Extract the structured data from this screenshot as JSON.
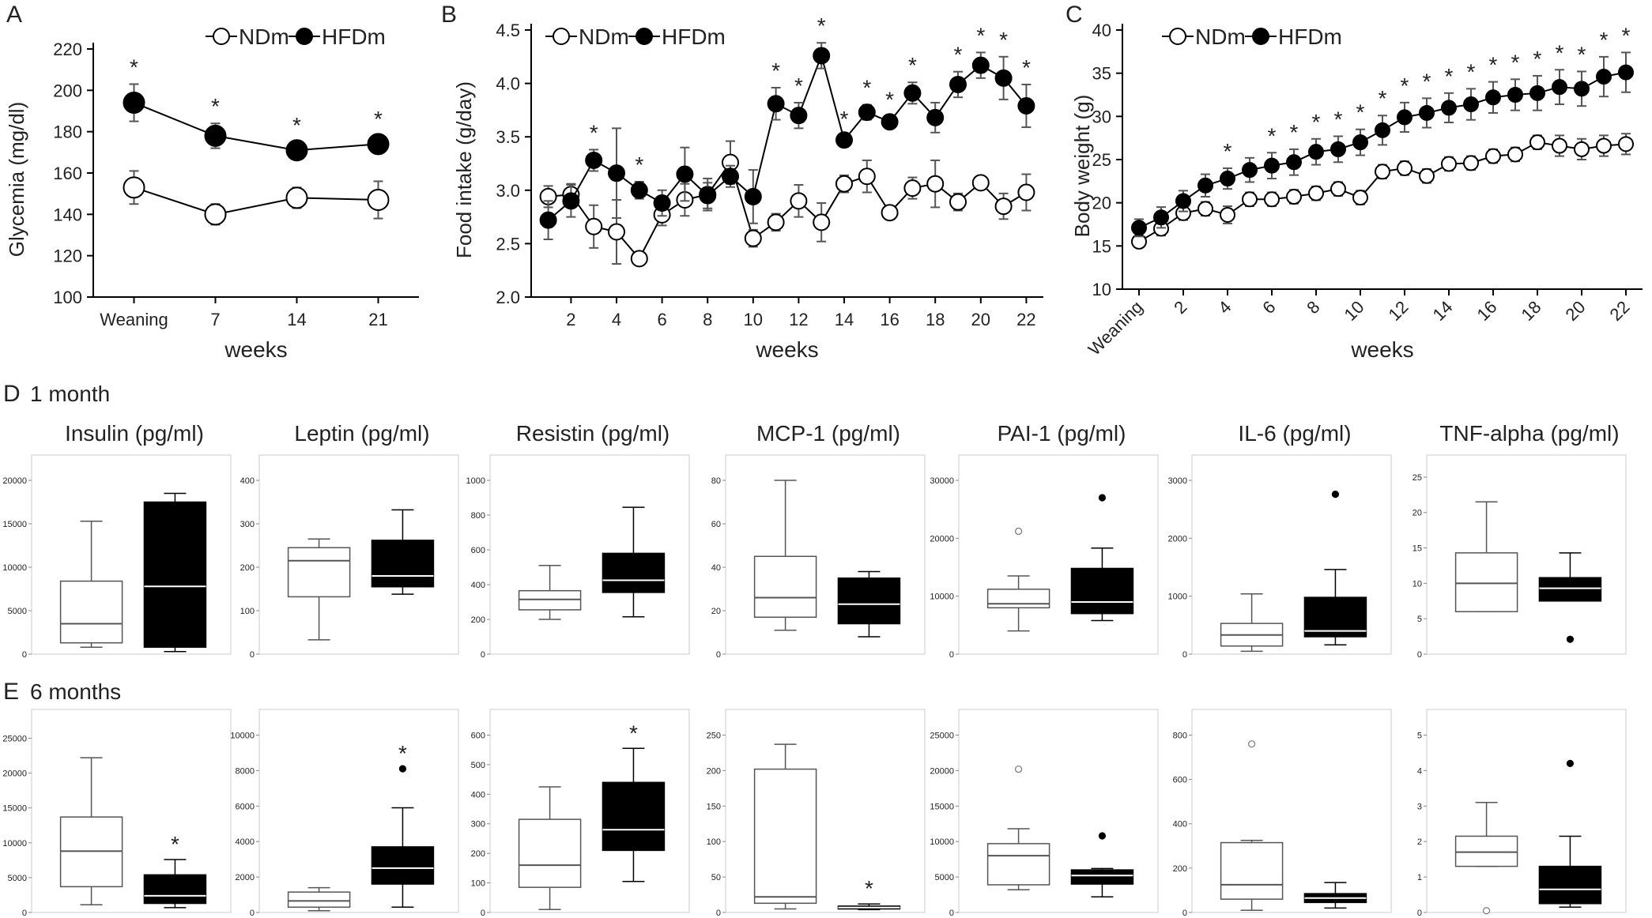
{
  "chart_data": [
    {
      "panel": "A",
      "type": "line",
      "ylabel": "Glycemia (mg/dl)",
      "xlabel": "weeks",
      "categories": [
        "Weaning",
        "7",
        "14",
        "21"
      ],
      "ylim": [
        100,
        220
      ],
      "yticks": [
        100,
        120,
        140,
        160,
        180,
        200,
        220
      ],
      "legend": [
        "NDm",
        "HFDm"
      ],
      "series": [
        {
          "name": "NDm",
          "values": [
            153,
            140,
            148,
            147
          ],
          "err": [
            8,
            5,
            5,
            9
          ]
        },
        {
          "name": "HFDm",
          "values": [
            194,
            178,
            171,
            174
          ],
          "err": [
            9,
            6,
            4,
            4
          ]
        }
      ],
      "sig": [
        "*",
        "*",
        "*",
        "*"
      ]
    },
    {
      "panel": "B",
      "type": "line",
      "ylabel": "Food intake (g/day)",
      "xlabel": "weeks",
      "x": [
        1,
        2,
        3,
        4,
        5,
        6,
        7,
        8,
        9,
        10,
        11,
        12,
        13,
        14,
        15,
        16,
        17,
        18,
        19,
        20,
        21,
        22
      ],
      "xticks": [
        "2",
        "4",
        "6",
        "8",
        "10",
        "12",
        "14",
        "16",
        "18",
        "20",
        "22"
      ],
      "ylim": [
        2.0,
        4.5
      ],
      "yticks": [
        "2.0",
        "2.5",
        "3.0",
        "3.5",
        "4.0",
        "4.5"
      ],
      "legend": [
        "NDm",
        "HFDm"
      ],
      "series": [
        {
          "name": "NDm",
          "values": [
            2.94,
            2.96,
            2.66,
            2.61,
            2.36,
            2.77,
            2.91,
            2.96,
            3.26,
            2.55,
            2.7,
            2.9,
            2.7,
            3.06,
            3.13,
            2.79,
            3.02,
            3.06,
            2.89,
            3.07,
            2.85,
            2.98
          ],
          "err": [
            0.1,
            0.1,
            0.2,
            0.3,
            0.03,
            0.1,
            0.15,
            0.15,
            0.2,
            0.08,
            0.08,
            0.15,
            0.18,
            0.08,
            0.15,
            0.06,
            0.1,
            0.22,
            0.08,
            0.06,
            0.12,
            0.17
          ]
        },
        {
          "name": "HFDm",
          "values": [
            2.72,
            2.9,
            3.28,
            3.16,
            3.0,
            2.88,
            3.15,
            2.95,
            3.13,
            2.94,
            3.81,
            3.7,
            4.26,
            3.47,
            3.73,
            3.64,
            3.91,
            3.68,
            3.99,
            4.17,
            4.05,
            3.79
          ],
          "err": [
            0.18,
            0.15,
            0.1,
            0.42,
            0.08,
            0.12,
            0.25,
            0.12,
            0.1,
            0.25,
            0.15,
            0.12,
            0.12,
            0.04,
            0.07,
            0.05,
            0.1,
            0.14,
            0.12,
            0.12,
            0.2,
            0.2
          ]
        }
      ],
      "sig": [
        "",
        "",
        "*",
        "",
        "*",
        "",
        "",
        "",
        "",
        "",
        "*",
        "*",
        "*",
        "*",
        "*",
        "*",
        "*",
        "",
        "*",
        "*",
        "*",
        "*"
      ]
    },
    {
      "panel": "C",
      "type": "line",
      "ylabel": "Body weight (g)",
      "xlabel": "weeks",
      "x": [
        0,
        1,
        2,
        3,
        4,
        5,
        6,
        7,
        8,
        9,
        10,
        11,
        12,
        13,
        14,
        15,
        16,
        17,
        18,
        19,
        20,
        21,
        22
      ],
      "xticks": [
        "Weaning",
        "2",
        "4",
        "6",
        "8",
        "10",
        "12",
        "14",
        "16",
        "18",
        "20",
        "22"
      ],
      "ylim": [
        10,
        40
      ],
      "yticks": [
        10,
        15,
        20,
        25,
        30,
        35,
        40
      ],
      "legend": [
        "NDm",
        "HFDm"
      ],
      "series": [
        {
          "name": "NDm",
          "values": [
            15.5,
            17.0,
            18.8,
            19.3,
            18.6,
            20.4,
            20.4,
            20.7,
            21.1,
            21.6,
            20.6,
            23.6,
            24.0,
            23.1,
            24.5,
            24.6,
            25.4,
            25.6,
            27.0,
            26.6,
            26.2,
            26.6,
            26.8
          ],
          "err": [
            0.6,
            0.8,
            0.8,
            0.8,
            1.0,
            0.8,
            0.8,
            0.8,
            0.8,
            0.8,
            0.8,
            0.8,
            0.8,
            0.8,
            0.8,
            0.8,
            0.8,
            0.8,
            0.8,
            1.2,
            1.2,
            1.2,
            1.2
          ]
        },
        {
          "name": "HFDm",
          "values": [
            17.1,
            18.3,
            20.2,
            22.0,
            22.8,
            23.8,
            24.3,
            24.7,
            25.9,
            26.2,
            27.0,
            28.4,
            29.9,
            30.4,
            31.0,
            31.4,
            32.2,
            32.5,
            32.7,
            33.4,
            33.2,
            34.6,
            35.1
          ],
          "err": [
            1.0,
            1.2,
            1.2,
            1.3,
            1.2,
            1.4,
            1.5,
            1.5,
            1.5,
            1.5,
            1.5,
            1.7,
            1.7,
            1.7,
            1.7,
            1.8,
            1.8,
            1.8,
            2.0,
            2.0,
            2.0,
            2.3,
            2.3
          ]
        }
      ],
      "sig": [
        "",
        "",
        "",
        "",
        "*",
        "",
        "*",
        "*",
        "*",
        "*",
        "*",
        "*",
        "*",
        "*",
        "*",
        "*",
        "*",
        "*",
        "*",
        "*",
        "*",
        "*",
        "*"
      ]
    },
    {
      "panel": "D",
      "type": "box",
      "row_title": "1 month",
      "plots": [
        {
          "title": "Insulin (pg/ml)",
          "yticks": [
            0,
            5000,
            10000,
            15000,
            20000
          ],
          "ymax": 22000,
          "boxes": [
            {
              "group": "NDm",
              "whisker_low": 800,
              "q1": 1300,
              "median": 3500,
              "q3": 8400,
              "whisker_high": 15300,
              "outliers": []
            },
            {
              "group": "HFDm",
              "whisker_low": 300,
              "q1": 800,
              "median": 7800,
              "q3": 17500,
              "whisker_high": 18500,
              "outliers": []
            }
          ],
          "sig": [
            "",
            ""
          ]
        },
        {
          "title": "Leptin (pg/ml)",
          "yticks": [
            0,
            100,
            200,
            300,
            400
          ],
          "ymax": 440,
          "boxes": [
            {
              "group": "NDm",
              "whisker_low": 33,
              "q1": 132,
              "median": 215,
              "q3": 245,
              "whisker_high": 265,
              "outliers": []
            },
            {
              "group": "HFDm",
              "whisker_low": 138,
              "q1": 155,
              "median": 180,
              "q3": 262,
              "whisker_high": 332,
              "outliers": []
            }
          ],
          "sig": [
            "",
            ""
          ]
        },
        {
          "title": "Resistin (pg/ml)",
          "yticks": [
            0,
            200,
            400,
            600,
            800,
            1000
          ],
          "ymax": 1100,
          "boxes": [
            {
              "group": "NDm",
              "whisker_low": 200,
              "q1": 255,
              "median": 315,
              "q3": 365,
              "whisker_high": 510,
              "outliers": []
            },
            {
              "group": "HFDm",
              "whisker_low": 215,
              "q1": 355,
              "median": 425,
              "q3": 580,
              "whisker_high": 845,
              "outliers": []
            }
          ],
          "sig": [
            "",
            ""
          ]
        },
        {
          "title": "MCP-1 (pg/ml)",
          "yticks": [
            0,
            20,
            40,
            60,
            80
          ],
          "ymax": 88,
          "boxes": [
            {
              "group": "NDm",
              "whisker_low": 11,
              "q1": 17,
              "median": 26,
              "q3": 45,
              "whisker_high": 80,
              "outliers": []
            },
            {
              "group": "HFDm",
              "whisker_low": 8,
              "q1": 14,
              "median": 23,
              "q3": 35,
              "whisker_high": 38,
              "outliers": []
            }
          ],
          "sig": [
            "",
            ""
          ]
        },
        {
          "title": "PAI-1 (pg/ml)",
          "yticks": [
            0,
            10000,
            20000,
            30000
          ],
          "ymax": 33000,
          "boxes": [
            {
              "group": "NDm",
              "whisker_low": 4000,
              "q1": 8000,
              "median": 8700,
              "q3": 11200,
              "whisker_high": 13500,
              "outliers": [
                {
                  "v": 21200,
                  "filled": false
                }
              ]
            },
            {
              "group": "HFDm",
              "whisker_low": 5800,
              "q1": 7000,
              "median": 9000,
              "q3": 14800,
              "whisker_high": 18300,
              "outliers": [
                {
                  "v": 27000,
                  "filled": true
                }
              ]
            }
          ],
          "sig": [
            "",
            ""
          ]
        },
        {
          "title": "IL-6 (pg/ml)",
          "yticks": [
            0,
            1000,
            2000,
            3000
          ],
          "ymax": 3300,
          "boxes": [
            {
              "group": "NDm",
              "whisker_low": 50,
              "q1": 140,
              "median": 330,
              "q3": 530,
              "whisker_high": 1040,
              "outliers": []
            },
            {
              "group": "HFDm",
              "whisker_low": 160,
              "q1": 300,
              "median": 400,
              "q3": 980,
              "whisker_high": 1460,
              "outliers": [
                {
                  "v": 2760,
                  "filled": true
                }
              ]
            }
          ],
          "sig": [
            "",
            ""
          ]
        },
        {
          "title": "TNF-alpha (pg/ml)",
          "yticks": [
            0,
            5,
            10,
            15,
            20,
            25
          ],
          "ymax": 27,
          "boxes": [
            {
              "group": "NDm",
              "whisker_low": 6,
              "q1": 6,
              "median": 10,
              "q3": 14.3,
              "whisker_high": 21.5,
              "outliers": []
            },
            {
              "group": "HFDm",
              "whisker_low": 7.5,
              "q1": 7.5,
              "median": 9.3,
              "q3": 10.8,
              "whisker_high": 14.3,
              "outliers": [
                {
                  "v": 2.1,
                  "filled": true
                }
              ]
            }
          ],
          "sig": [
            "",
            ""
          ]
        }
      ]
    },
    {
      "panel": "E",
      "type": "box",
      "row_title": "6 months",
      "plots": [
        {
          "title": "",
          "yticks": [
            0,
            5000,
            10000,
            15000,
            20000,
            25000
          ],
          "ymax": 28000,
          "boxes": [
            {
              "group": "NDm",
              "whisker_low": 1100,
              "q1": 3700,
              "median": 8800,
              "q3": 13700,
              "whisker_high": 22200,
              "outliers": []
            },
            {
              "group": "HFDm",
              "whisker_low": 700,
              "q1": 1300,
              "median": 2400,
              "q3": 5400,
              "whisker_high": 7600,
              "outliers": []
            }
          ],
          "sig": [
            "",
            "*"
          ]
        },
        {
          "title": "",
          "yticks": [
            0,
            2000,
            4000,
            6000,
            8000,
            10000
          ],
          "ymax": 11000,
          "boxes": [
            {
              "group": "NDm",
              "whisker_low": 100,
              "q1": 300,
              "median": 650,
              "q3": 1150,
              "whisker_high": 1400,
              "outliers": []
            },
            {
              "group": "HFDm",
              "whisker_low": 300,
              "q1": 1600,
              "median": 2500,
              "q3": 3700,
              "whisker_high": 5900,
              "outliers": [
                {
                  "v": 8100,
                  "filled": true
                }
              ]
            }
          ],
          "sig": [
            "",
            "*"
          ]
        },
        {
          "title": "",
          "yticks": [
            0,
            100,
            200,
            300,
            400,
            500,
            600
          ],
          "ymax": 660,
          "boxes": [
            {
              "group": "NDm",
              "whisker_low": 10,
              "q1": 85,
              "median": 160,
              "q3": 315,
              "whisker_high": 425,
              "outliers": []
            },
            {
              "group": "HFDm",
              "whisker_low": 105,
              "q1": 210,
              "median": 280,
              "q3": 440,
              "whisker_high": 555,
              "outliers": []
            }
          ],
          "sig": [
            "",
            "*"
          ]
        },
        {
          "title": "",
          "yticks": [
            0,
            50,
            100,
            150,
            200,
            250
          ],
          "ymax": 275,
          "boxes": [
            {
              "group": "NDm",
              "whisker_low": 5,
              "q1": 13,
              "median": 22,
              "q3": 202,
              "whisker_high": 237,
              "outliers": []
            },
            {
              "group": "HFDm",
              "whisker_low": 4,
              "q1": 5,
              "median": 7,
              "q3": 9,
              "whisker_high": 12,
              "outliers": []
            }
          ],
          "sig": [
            "",
            "*"
          ]
        },
        {
          "title": "",
          "yticks": [
            0,
            5000,
            10000,
            15000,
            20000,
            25000
          ],
          "ymax": 27500,
          "boxes": [
            {
              "group": "NDm",
              "whisker_low": 3200,
              "q1": 3900,
              "median": 8000,
              "q3": 9700,
              "whisker_high": 11800,
              "outliers": [
                {
                  "v": 20200,
                  "filled": false
                }
              ]
            },
            {
              "group": "HFDm",
              "whisker_low": 2200,
              "q1": 4000,
              "median": 5200,
              "q3": 6000,
              "whisker_high": 6200,
              "outliers": [
                {
                  "v": 10800,
                  "filled": true
                }
              ]
            }
          ],
          "sig": [
            "",
            ""
          ]
        },
        {
          "title": "",
          "yticks": [
            0,
            200,
            400,
            600,
            800
          ],
          "ymax": 880,
          "boxes": [
            {
              "group": "NDm",
              "whisker_low": 10,
              "q1": 60,
              "median": 125,
              "q3": 315,
              "whisker_high": 325,
              "outliers": [
                {
                  "v": 760,
                  "filled": false
                }
              ]
            },
            {
              "group": "HFDm",
              "whisker_low": 20,
              "q1": 45,
              "median": 65,
              "q3": 85,
              "whisker_high": 135,
              "outliers": []
            }
          ],
          "sig": [
            "",
            ""
          ]
        },
        {
          "title": "",
          "yticks": [
            0,
            1,
            2,
            3,
            4,
            5
          ],
          "ymax": 5.5,
          "boxes": [
            {
              "group": "NDm",
              "whisker_low": 1.3,
              "q1": 1.3,
              "median": 1.7,
              "q3": 2.15,
              "whisker_high": 3.1,
              "outliers": [
                {
                  "v": 0.05,
                  "filled": false
                }
              ]
            },
            {
              "group": "HFDm",
              "whisker_low": 0.15,
              "q1": 0.25,
              "median": 0.65,
              "q3": 1.3,
              "whisker_high": 2.15,
              "outliers": [
                {
                  "v": 4.2,
                  "filled": true
                }
              ]
            }
          ],
          "sig": [
            "",
            ""
          ]
        }
      ]
    }
  ]
}
